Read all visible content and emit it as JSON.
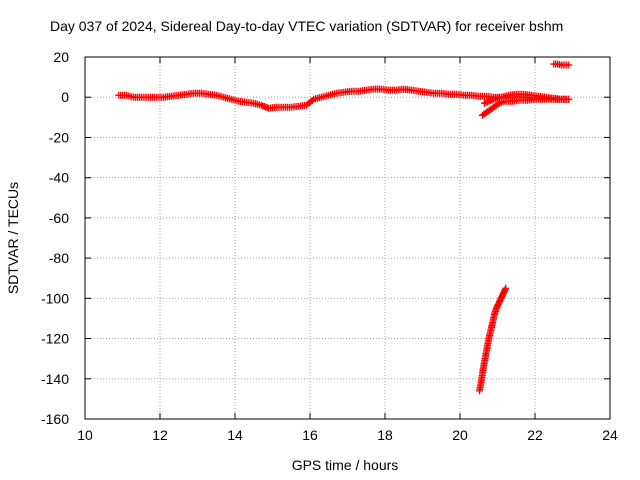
{
  "chart_data": {
    "type": "scatter",
    "title": "Day 037 of 2024, Sidereal Day-to-day VTEC variation (SDTVAR) for receiver bshm",
    "xlabel": "GPS time / hours",
    "ylabel": "SDTVAR / TECUs",
    "xlim": [
      10,
      24
    ],
    "ylim": [
      -160,
      20
    ],
    "xticks": [
      10,
      12,
      14,
      16,
      18,
      20,
      22,
      24
    ],
    "yticks": [
      20,
      0,
      -20,
      -40,
      -60,
      -80,
      -100,
      -120,
      -140,
      -160
    ],
    "grid": true,
    "marker": "plus",
    "color": "#ff0000",
    "series": [
      {
        "x": [
          10.9,
          11.1,
          11.3,
          11.5,
          11.7,
          11.9,
          12.1,
          12.3,
          12.5,
          12.7,
          12.9,
          13.1,
          13.3,
          13.5,
          13.7,
          13.9,
          14.1,
          14.3,
          14.5,
          14.7,
          14.9,
          15.1,
          15.3,
          15.5,
          15.7,
          15.9,
          16.1,
          16.3,
          16.5,
          16.7,
          16.9,
          17.1,
          17.3,
          17.5,
          17.7,
          17.9,
          18.1,
          18.3,
          18.5,
          18.7,
          18.9,
          19.1,
          19.3,
          19.5,
          19.7,
          19.9,
          20.1,
          20.3,
          20.5,
          20.7,
          20.9,
          21.1,
          21.3,
          21.5,
          21.7,
          21.9,
          22.1,
          22.3,
          22.5,
          22.7,
          22.9
        ],
        "y": [
          1,
          1,
          0,
          0,
          0,
          0,
          0,
          0.5,
          1,
          1.5,
          2,
          2,
          1.5,
          1,
          0,
          -1,
          -2,
          -2.5,
          -3,
          -4,
          -5.5,
          -5,
          -5,
          -5,
          -4.5,
          -4,
          -1,
          0,
          1,
          2,
          2.5,
          3,
          3,
          3.5,
          4,
          4,
          3.5,
          3.5,
          4,
          3.5,
          3,
          2.5,
          2,
          2,
          1.5,
          1.5,
          1,
          1,
          0.5,
          0.5,
          0,
          0,
          0,
          0,
          0,
          -0.5,
          -0.5,
          -0.5,
          -1,
          -1,
          -1
        ]
      },
      {
        "x": [
          20.6,
          20.75,
          20.9,
          21.05,
          21.2,
          21.4,
          21.6,
          21.8,
          22.0,
          22.2,
          22.4,
          22.6,
          22.8
        ],
        "y": [
          -9,
          -7,
          -5,
          -3,
          -2,
          -2,
          -1.5,
          -1.5,
          -1,
          -1,
          -1,
          -1,
          -1
        ]
      },
      {
        "x": [
          20.65,
          20.9,
          21.1,
          21.3,
          21.5,
          21.7,
          21.9,
          22.1,
          22.3,
          22.5,
          22.7,
          22.9
        ],
        "y": [
          -3,
          -1,
          0,
          1,
          1.5,
          1.5,
          1,
          0.5,
          0,
          -0.5,
          -1,
          -1
        ]
      },
      {
        "x": [
          22.5,
          22.6,
          22.7,
          22.8,
          22.9
        ],
        "y": [
          16.5,
          16.5,
          16,
          16,
          16
        ]
      },
      {
        "x": [
          20.52,
          20.57,
          20.62,
          20.67,
          20.72,
          20.77,
          20.82,
          20.87,
          20.92,
          20.97,
          21.02,
          21.07,
          21.12,
          21.17,
          21.22
        ],
        "y": [
          -146,
          -141,
          -135,
          -130,
          -125,
          -120,
          -116,
          -112,
          -108,
          -105,
          -103,
          -101,
          -99,
          -97,
          -95
        ]
      }
    ]
  }
}
